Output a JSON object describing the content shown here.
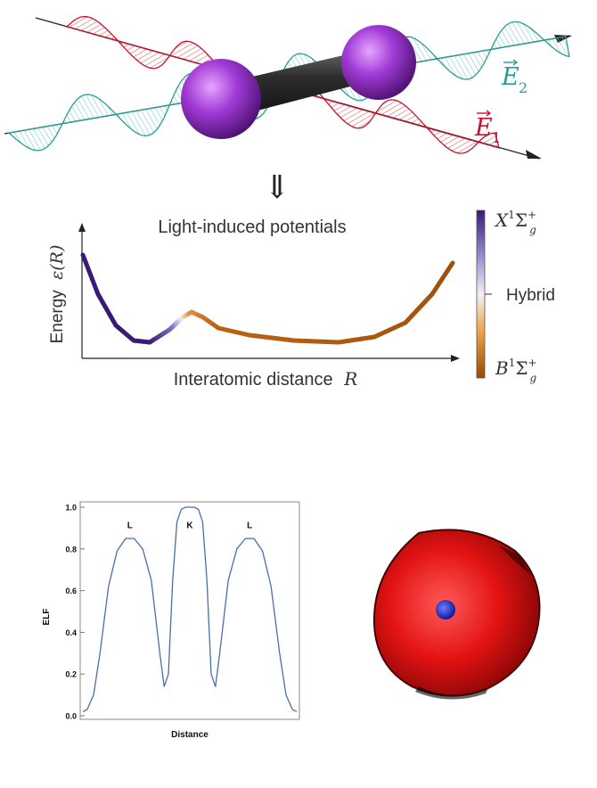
{
  "molecule_figure": {
    "field_labels": {
      "e1": {
        "symbol": "E",
        "subscript": "1",
        "color": "#c8102e"
      },
      "e2": {
        "symbol": "E",
        "subscript": "2",
        "color": "#2a9d9a"
      }
    },
    "arrow_glyph": "⇓",
    "atom_color": "#a23bd6",
    "bond_color": "#2b2b2b"
  },
  "potential_chart": {
    "title": "Light-induced potentials",
    "ylabel_text": "Energy",
    "ylabel_math": "ε(R)",
    "xlabel_text": "Interatomic distance",
    "xlabel_math": "R",
    "colorbar": {
      "top_label": {
        "base": "X",
        "sup": "1",
        "sigma": "Σ",
        "sub": "g",
        "sup2": "+"
      },
      "mid_label": "Hybrid",
      "bottom_label": {
        "base": "B",
        "sup": "1",
        "sigma": "Σ",
        "sub": "g",
        "sup2": "+"
      },
      "top_color": "#3a1a78",
      "mid_color": "#f2f2f2",
      "bottom_color": "#9a4a05"
    }
  },
  "chart_data": {
    "type": "line",
    "title": "",
    "xlabel": "Distance",
    "ylabel": "ELF",
    "ylim": [
      0,
      1.0
    ],
    "yticks": [
      "0.0",
      "0.2",
      "0.4",
      "0.6",
      "0.8",
      "1.0"
    ],
    "grid": false,
    "series": [
      {
        "x": [
          0.0,
          0.02,
          0.05,
          0.08,
          0.12,
          0.16,
          0.2,
          0.24,
          0.28,
          0.32,
          0.36,
          0.38,
          0.4,
          0.42,
          0.44,
          0.46,
          0.48,
          0.5,
          0.52,
          0.54,
          0.56,
          0.58,
          0.6,
          0.62,
          0.64,
          0.68,
          0.72,
          0.76,
          0.8,
          0.84,
          0.88,
          0.92,
          0.95,
          0.98,
          1.0
        ],
        "y": [
          0.02,
          0.03,
          0.1,
          0.3,
          0.62,
          0.79,
          0.85,
          0.85,
          0.8,
          0.65,
          0.3,
          0.14,
          0.2,
          0.65,
          0.93,
          0.99,
          1.0,
          1.0,
          1.0,
          0.99,
          0.93,
          0.65,
          0.2,
          0.14,
          0.3,
          0.65,
          0.8,
          0.85,
          0.85,
          0.79,
          0.62,
          0.3,
          0.1,
          0.03,
          0.02
        ],
        "color": "#4a6ea8"
      }
    ],
    "annotations": [
      {
        "text": "L",
        "x": 0.22,
        "y": 0.9
      },
      {
        "text": "K",
        "x": 0.5,
        "y": 0.9
      },
      {
        "text": "L",
        "x": 0.78,
        "y": 0.9
      }
    ]
  },
  "sphere_figure": {
    "shell_color": "#e01515",
    "core_color": "#1a2ad0"
  }
}
